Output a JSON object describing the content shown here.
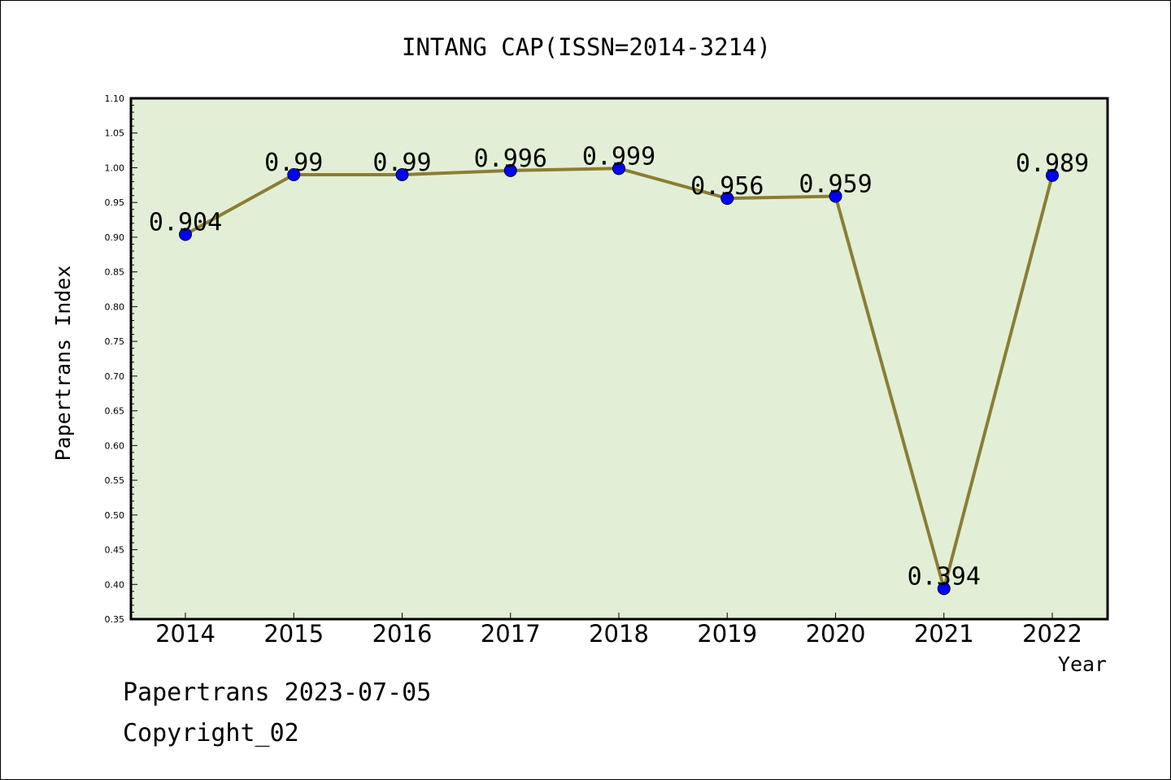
{
  "chart_data": {
    "type": "line",
    "title": "INTANG CAP(ISSN=2014-3214)",
    "xlabel": "Year",
    "ylabel": "Papertrans Index",
    "categories": [
      "2014",
      "2015",
      "2016",
      "2017",
      "2018",
      "2019",
      "2020",
      "2021",
      "2022"
    ],
    "series": [
      {
        "values": [
          0.904,
          0.99,
          0.99,
          0.996,
          0.999,
          0.956,
          0.959,
          0.394,
          0.989
        ],
        "data_labels": [
          "0.904",
          "0.99",
          "0.99",
          "0.996",
          "0.999",
          "0.956",
          "0.959",
          "0.394",
          "0.989"
        ]
      }
    ],
    "ylim": [
      0.35,
      1.1
    ],
    "yticks": [
      "0.35",
      "0.40",
      "0.45",
      "0.50",
      "0.55",
      "0.60",
      "0.65",
      "0.70",
      "0.75",
      "0.80",
      "0.85",
      "0.90",
      "0.95",
      "1.00",
      "1.05",
      "1.10"
    ],
    "grid": false,
    "colors": {
      "plot_background": "#e2efd6",
      "line": "#8b7d35",
      "marker": "#0000ff"
    }
  },
  "footer": {
    "date_line": "Papertrans 2023-07-05",
    "copyright": "Copyright_02"
  }
}
